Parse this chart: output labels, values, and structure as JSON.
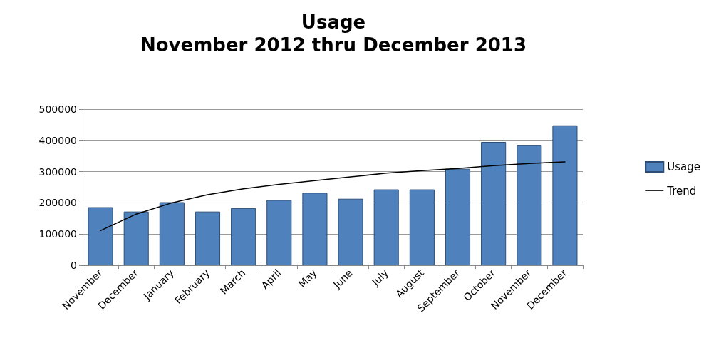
{
  "chart_data": {
    "type": "bar",
    "title": "Usage",
    "subtitle": "November 2012 thru December 2013",
    "categories": [
      "November",
      "December",
      "January",
      "February",
      "March",
      "April",
      "May",
      "June",
      "July",
      "August",
      "September",
      "October",
      "November",
      "December"
    ],
    "series": [
      {
        "name": "Usage",
        "color": "#4f81bd",
        "values": [
          186000,
          172000,
          202000,
          172000,
          183000,
          209000,
          232000,
          213000,
          243000,
          243000,
          309000,
          395000,
          384000,
          448000
        ]
      },
      {
        "name": "Trend",
        "type": "line",
        "color": "#000000",
        "values": [
          111000,
          164000,
          200000,
          226000,
          245000,
          259000,
          271000,
          283000,
          295000,
          303000,
          310000,
          319000,
          326000,
          331000
        ]
      }
    ],
    "ylim": [
      0,
      500000
    ],
    "yticks": [
      0,
      100000,
      200000,
      300000,
      400000,
      500000
    ],
    "grid": "y",
    "legend": "right",
    "marker": "none"
  }
}
